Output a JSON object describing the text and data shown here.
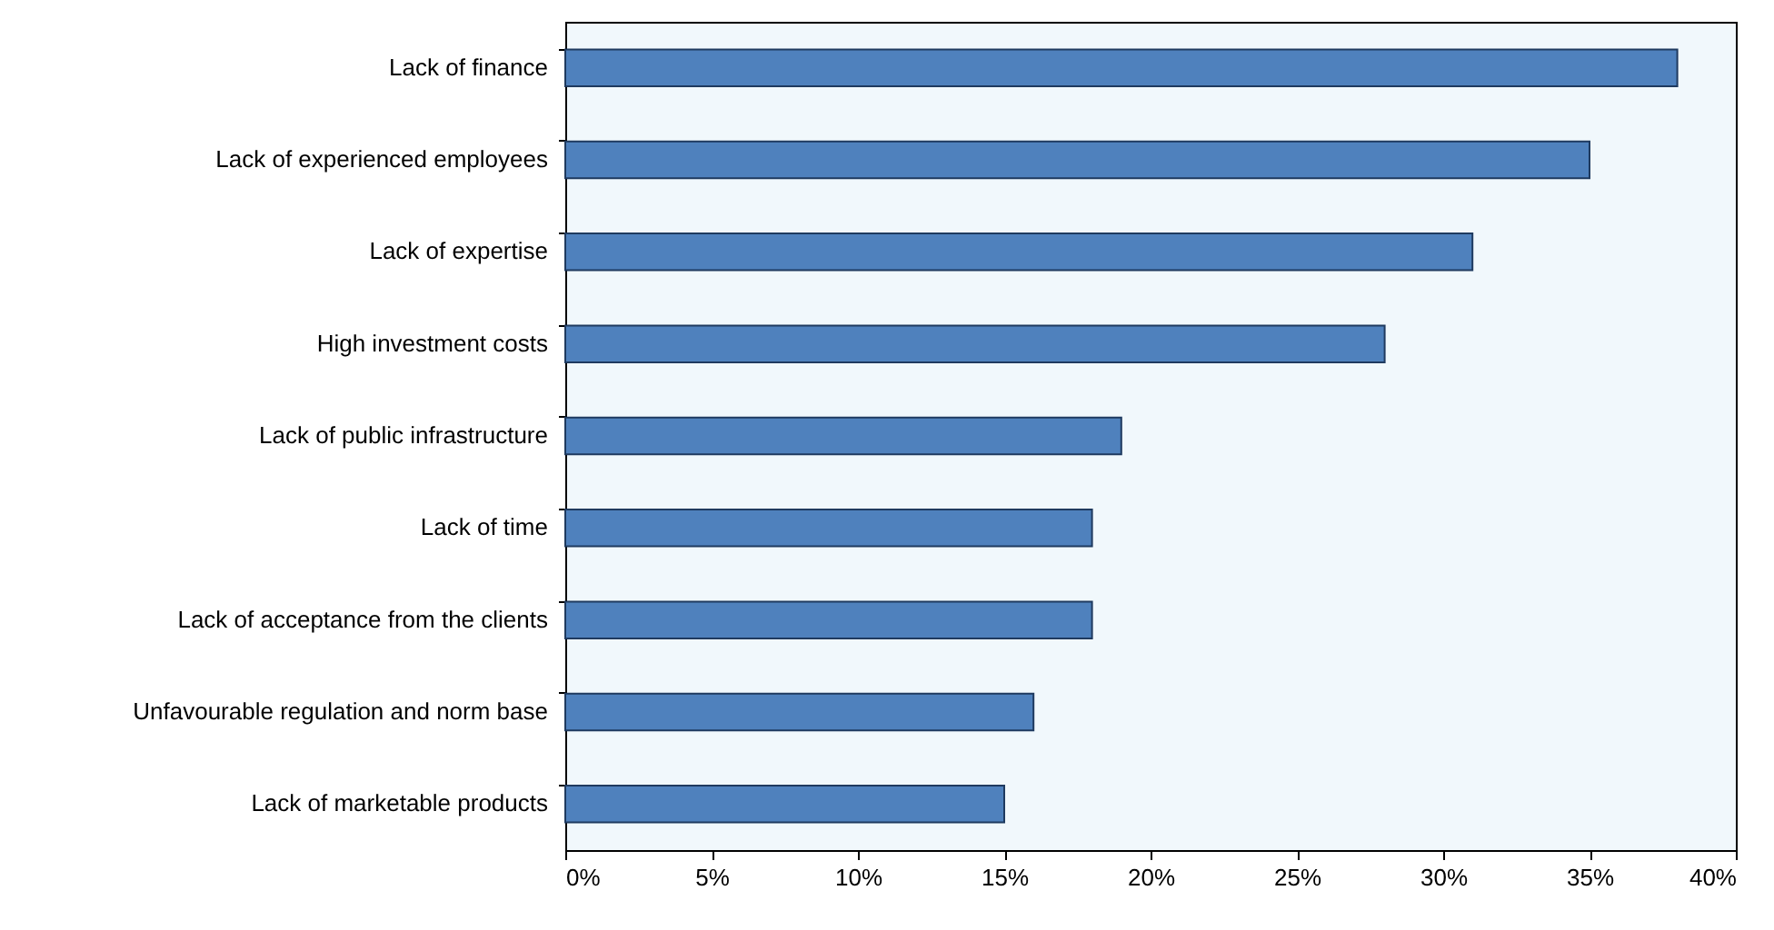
{
  "chart_data": {
    "type": "bar",
    "orientation": "horizontal",
    "categories": [
      "Lack of finance",
      "Lack of experienced employees",
      "Lack of expertise",
      "High investment costs",
      "Lack of public infrastructure",
      "Lack of time",
      "Lack of acceptance from the clients",
      "Unfavourable regulation and norm base",
      "Lack of marketable products"
    ],
    "values": [
      38,
      35,
      31,
      28,
      19,
      18,
      18,
      16,
      15
    ],
    "color": "#4f81bd",
    "xlim": [
      0,
      40
    ],
    "xticks": [
      {
        "value": 0,
        "label": "0%"
      },
      {
        "value": 5,
        "label": "5%"
      },
      {
        "value": 10,
        "label": "10%"
      },
      {
        "value": 15,
        "label": "15%"
      },
      {
        "value": 20,
        "label": "20%"
      },
      {
        "value": 25,
        "label": "25%"
      },
      {
        "value": 30,
        "label": "30%"
      },
      {
        "value": 35,
        "label": "35%"
      },
      {
        "value": 40,
        "label": "40%"
      }
    ],
    "grid": false
  }
}
